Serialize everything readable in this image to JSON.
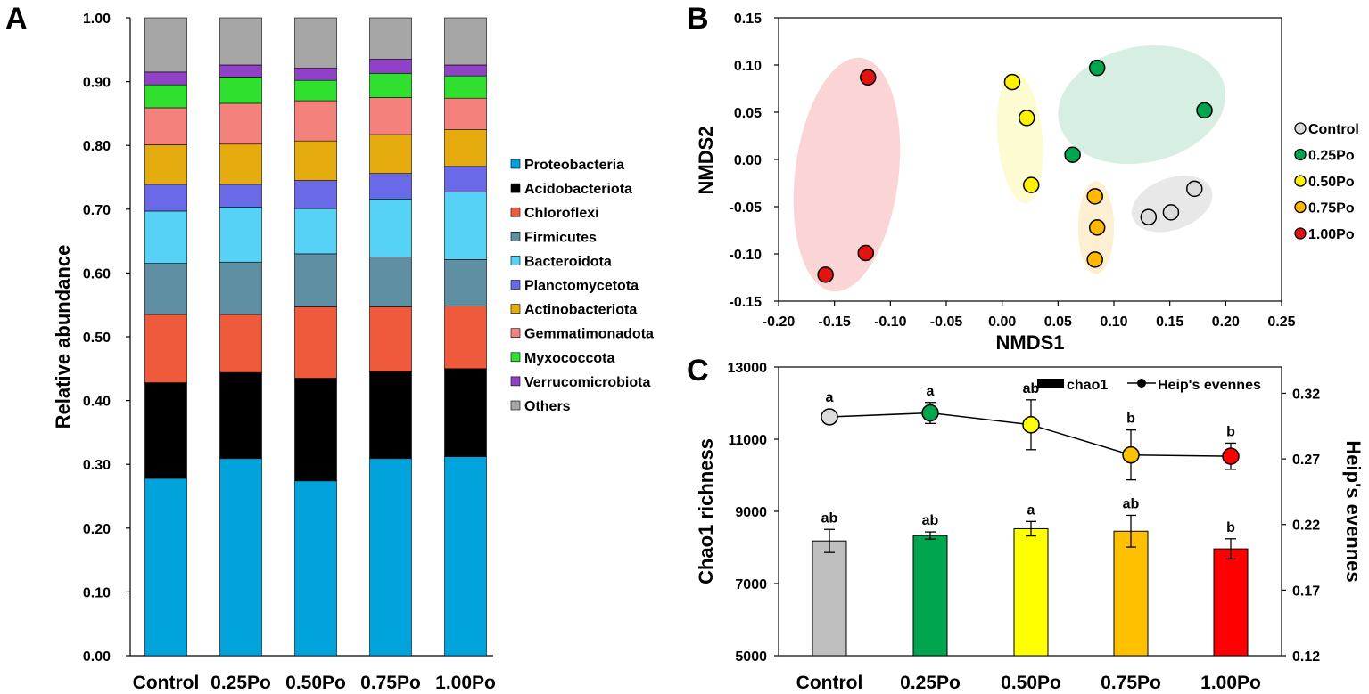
{
  "chart_data": [
    {
      "panel": "A",
      "type": "bar",
      "stacked": true,
      "ylabel": "Relative abundance",
      "ylim": [
        0,
        1.0
      ],
      "yticks": [
        "0.00",
        "0.10",
        "0.20",
        "0.30",
        "0.40",
        "0.50",
        "0.60",
        "0.70",
        "0.80",
        "0.90",
        "1.00"
      ],
      "categories": [
        "Control",
        "0.25Po",
        "0.50Po",
        "0.75Po",
        "1.00Po"
      ],
      "series": [
        {
          "name": "Proteobacteria",
          "color": "#00A3DB",
          "values": [
            0.278,
            0.309,
            0.274,
            0.309,
            0.312
          ]
        },
        {
          "name": "Acidobacteriota",
          "color": "#000000",
          "values": [
            0.15,
            0.135,
            0.161,
            0.136,
            0.138
          ]
        },
        {
          "name": "Chloroflexi",
          "color": "#F05A3C",
          "values": [
            0.107,
            0.091,
            0.112,
            0.102,
            0.098
          ]
        },
        {
          "name": "Firmicutes",
          "color": "#5E8FA3",
          "values": [
            0.08,
            0.082,
            0.083,
            0.078,
            0.073
          ]
        },
        {
          "name": "Bacteroidota",
          "color": "#55D2F5",
          "values": [
            0.082,
            0.086,
            0.071,
            0.091,
            0.106
          ]
        },
        {
          "name": "Planctomycetota",
          "color": "#6A6AE8",
          "values": [
            0.042,
            0.036,
            0.044,
            0.04,
            0.04
          ]
        },
        {
          "name": "Actinobacteriota",
          "color": "#E6AC0F",
          "values": [
            0.062,
            0.063,
            0.062,
            0.061,
            0.058
          ]
        },
        {
          "name": "Gemmatimonadota",
          "color": "#F5817D",
          "values": [
            0.058,
            0.064,
            0.063,
            0.058,
            0.049
          ]
        },
        {
          "name": "Myxococcota",
          "color": "#2FE02F",
          "values": [
            0.036,
            0.041,
            0.032,
            0.038,
            0.035
          ]
        },
        {
          "name": "Verrucomicrobiota",
          "color": "#9140C8",
          "values": [
            0.02,
            0.019,
            0.019,
            0.022,
            0.017
          ]
        },
        {
          "name": "Others",
          "color": "#A6A6A6",
          "values": [
            0.085,
            0.074,
            0.079,
            0.065,
            0.074
          ]
        }
      ]
    },
    {
      "panel": "B",
      "type": "scatter",
      "xlabel": "NMDS1",
      "ylabel": "NMDS2",
      "xlim": [
        -0.2,
        0.25
      ],
      "ylim": [
        -0.15,
        0.15
      ],
      "xticks": [
        "-0.20",
        "-0.15",
        "-0.10",
        "-0.05",
        "0.00",
        "0.05",
        "0.10",
        "0.15",
        "0.20",
        "0.25"
      ],
      "yticks": [
        "-0.15",
        "-0.10",
        "-0.05",
        "0.00",
        "0.05",
        "0.10",
        "0.15"
      ],
      "series": [
        {
          "name": "Control",
          "color": "#DCDCDC",
          "points": [
            [
              0.172,
              -0.031
            ],
            [
              0.131,
              -0.061
            ],
            [
              0.151,
              -0.056
            ]
          ]
        },
        {
          "name": "0.25Po",
          "color": "#00A550",
          "points": [
            [
              0.085,
              0.097
            ],
            [
              0.181,
              0.052
            ],
            [
              0.063,
              0.005
            ]
          ]
        },
        {
          "name": "0.50Po",
          "color": "#FFF200",
          "points": [
            [
              0.009,
              0.082
            ],
            [
              0.022,
              0.044
            ],
            [
              0.026,
              -0.027
            ]
          ]
        },
        {
          "name": "0.75Po",
          "color": "#FFB700",
          "points": [
            [
              0.083,
              -0.039
            ],
            [
              0.085,
              -0.072
            ],
            [
              0.083,
              -0.106
            ]
          ]
        },
        {
          "name": "1.00Po",
          "color": "#E5110F",
          "points": [
            [
              -0.12,
              0.087
            ],
            [
              -0.122,
              -0.099
            ],
            [
              -0.158,
              -0.122
            ]
          ]
        }
      ]
    },
    {
      "panel": "C",
      "type": "bar",
      "categories": [
        "Control",
        "0.25Po",
        "0.50Po",
        "0.75Po",
        "1.00Po"
      ],
      "ylabel": "Chao1 richness",
      "ylim": [
        5000,
        13000
      ],
      "yticks": [
        "5000",
        "7000",
        "9000",
        "11000",
        "13000"
      ],
      "y2label": "Heip's evennes",
      "y2lim": [
        0.12,
        0.34
      ],
      "y2ticks": [
        "0.12",
        "0.17",
        "0.22",
        "0.27",
        "0.32"
      ],
      "legend": [
        "chao1",
        "Heip's evennes"
      ],
      "bars": {
        "name": "chao1",
        "values": [
          8180,
          8330,
          8520,
          8450,
          7960
        ],
        "errors": [
          320,
          100,
          200,
          440,
          280
        ],
        "colors": [
          "#BFBFBF",
          "#00A550",
          "#FFFF00",
          "#FFC000",
          "#FF0000"
        ],
        "labels": [
          "ab",
          "ab",
          "a",
          "ab",
          "b"
        ]
      },
      "line": {
        "name": "Heip's evennes",
        "values": [
          0.302,
          0.305,
          0.296,
          0.273,
          0.272
        ],
        "errors": [
          0.0,
          0.008,
          0.019,
          0.019,
          0.01
        ],
        "colors": [
          "#DCDCDC",
          "#00A550",
          "#FFFF00",
          "#FFC000",
          "#FF0000"
        ],
        "labels": [
          "a",
          "a",
          "ab",
          "b",
          "b"
        ]
      }
    }
  ],
  "panels": {
    "a": "A",
    "b": "B",
    "c": "C"
  }
}
